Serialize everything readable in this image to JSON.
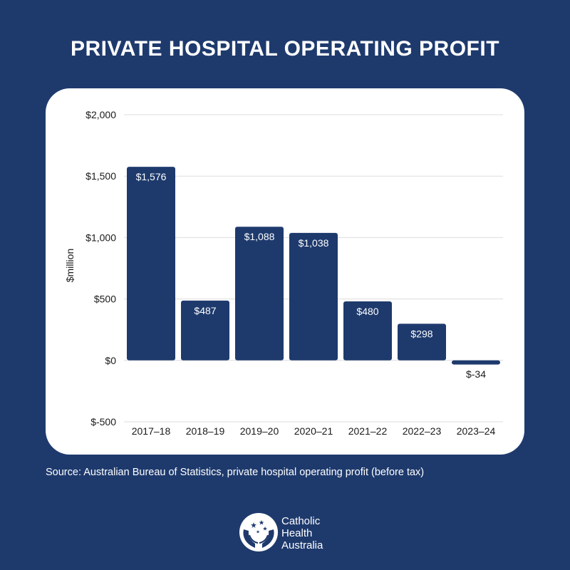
{
  "title": "PRIVATE HOSPITAL OPERATING PROFIT",
  "source": "Source: Australian Bureau of Statistics, private hospital operating profit (before tax)",
  "logo": {
    "lines": [
      "Catholic",
      "Health",
      "Australia"
    ],
    "icon": "hands-stars-icon"
  },
  "colors": {
    "background": "#1e3a6d",
    "bar": "#1e3a6d",
    "card": "#ffffff",
    "grid": "#dddddd"
  },
  "chart_data": {
    "type": "bar",
    "categories": [
      "2017–18",
      "2018–19",
      "2019–20",
      "2020–21",
      "2021–22",
      "2022–23",
      "2023–24"
    ],
    "values": [
      1576,
      487,
      1088,
      1038,
      480,
      298,
      -34
    ],
    "value_labels": [
      "$1,576",
      "$487",
      "$1,088",
      "$1,038",
      "$480",
      "$298",
      "$-34"
    ],
    "ylabel": "$million",
    "ylim": [
      -500,
      2000
    ],
    "yticks": [
      2000,
      1500,
      1000,
      500,
      0,
      -500
    ],
    "ytick_labels": [
      "$2,000",
      "$1,500",
      "$1,000",
      "$500",
      "$0",
      "$-500"
    ],
    "grid": true
  }
}
